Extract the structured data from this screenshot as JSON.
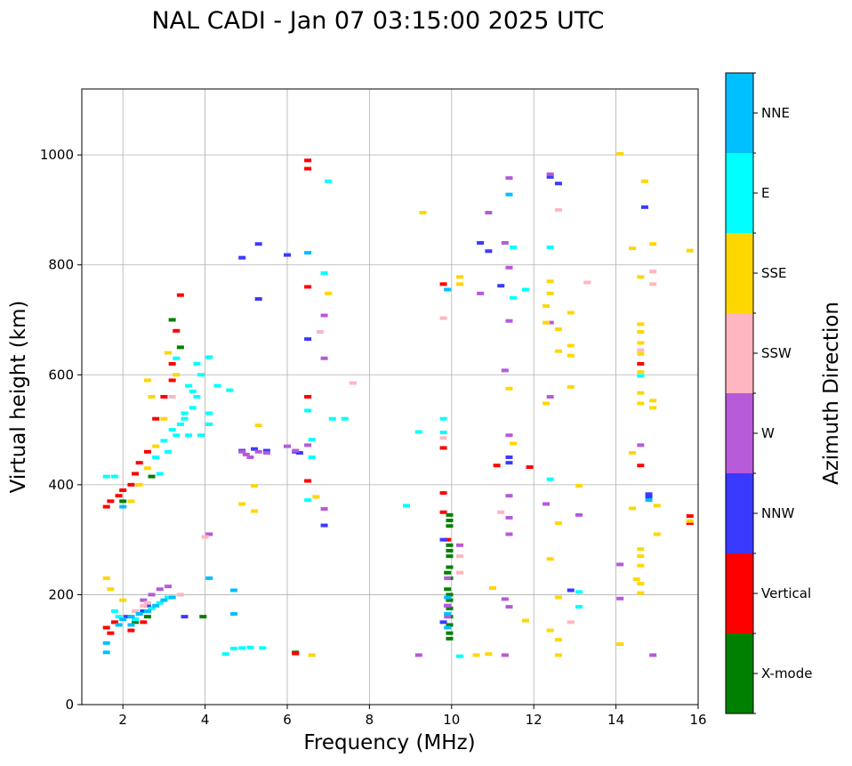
{
  "chart_data": {
    "type": "scatter",
    "title": "NAL CADI - Jan 07 03:15:00 2025 UTC",
    "xlabel": "Frequency (MHz)",
    "ylabel": "Virtual height (km)",
    "xlim": [
      1,
      16
    ],
    "ylim": [
      0,
      1120
    ],
    "xticks": [
      2,
      4,
      6,
      8,
      10,
      12,
      14,
      16
    ],
    "yticks": [
      0,
      200,
      400,
      600,
      800,
      1000
    ],
    "grid": true,
    "colorbar": {
      "label": "Azimuth Direction",
      "placement": "right",
      "categories": [
        {
          "name": "X-mode",
          "color": "#008000"
        },
        {
          "name": "Vertical",
          "color": "#ff0000"
        },
        {
          "name": "NNW",
          "color": "#3a3aff"
        },
        {
          "name": "W",
          "color": "#b65ad9"
        },
        {
          "name": "SSW",
          "color": "#ffb6c1"
        },
        {
          "name": "SSE",
          "color": "#ffd700"
        },
        {
          "name": "E",
          "color": "#00ffff"
        },
        {
          "name": "NNE",
          "color": "#00bfff"
        }
      ]
    },
    "series": [
      {
        "name": "X-mode",
        "points": [
          [
            9.95,
            345
          ],
          [
            9.95,
            335
          ],
          [
            9.95,
            325
          ],
          [
            9.95,
            290
          ],
          [
            9.95,
            280
          ],
          [
            9.95,
            270
          ],
          [
            9.95,
            250
          ],
          [
            9.95,
            230
          ],
          [
            9.95,
            200
          ],
          [
            9.95,
            190
          ],
          [
            9.95,
            175
          ],
          [
            9.95,
            160
          ],
          [
            9.95,
            145
          ],
          [
            9.95,
            130
          ],
          [
            9.95,
            120
          ],
          [
            3.95,
            160
          ],
          [
            2.0,
            370
          ],
          [
            2.7,
            415
          ],
          [
            3.4,
            650
          ],
          [
            3.2,
            700
          ],
          [
            2.3,
            150
          ],
          [
            2.6,
            160
          ],
          [
            9.9,
            210
          ],
          [
            9.9,
            240
          ],
          [
            6.2,
            95
          ]
        ]
      },
      {
        "name": "Vertical",
        "points": [
          [
            1.6,
            140
          ],
          [
            1.7,
            130
          ],
          [
            1.8,
            150
          ],
          [
            1.6,
            360
          ],
          [
            1.7,
            370
          ],
          [
            1.9,
            380
          ],
          [
            2.0,
            390
          ],
          [
            2.2,
            400
          ],
          [
            2.3,
            420
          ],
          [
            2.4,
            440
          ],
          [
            2.6,
            460
          ],
          [
            2.8,
            520
          ],
          [
            3.0,
            560
          ],
          [
            3.2,
            620
          ],
          [
            3.3,
            680
          ],
          [
            3.4,
            745
          ],
          [
            3.2,
            590
          ],
          [
            6.5,
            990
          ],
          [
            6.5,
            975
          ],
          [
            6.5,
            760
          ],
          [
            6.5,
            560
          ],
          [
            6.5,
            407
          ],
          [
            6.2,
            93
          ],
          [
            9.8,
            765
          ],
          [
            9.8,
            467
          ],
          [
            9.8,
            385
          ],
          [
            9.8,
            350
          ],
          [
            9.9,
            300
          ],
          [
            11.1,
            435
          ],
          [
            11.9,
            432
          ],
          [
            14.6,
            620
          ],
          [
            14.6,
            435
          ],
          [
            15.8,
            343
          ],
          [
            15.8,
            330
          ],
          [
            2.5,
            150
          ],
          [
            2.2,
            135
          ]
        ]
      },
      {
        "name": "NNW",
        "points": [
          [
            5.3,
            838
          ],
          [
            6.0,
            818
          ],
          [
            4.9,
            813
          ],
          [
            5.3,
            738
          ],
          [
            6.5,
            665
          ],
          [
            6.9,
            326
          ],
          [
            4.9,
            462
          ],
          [
            5.2,
            465
          ],
          [
            5.5,
            462
          ],
          [
            6.2,
            460
          ],
          [
            6.3,
            458
          ],
          [
            10.7,
            840
          ],
          [
            10.9,
            825
          ],
          [
            11.2,
            762
          ],
          [
            11.4,
            450
          ],
          [
            11.4,
            440
          ],
          [
            9.8,
            300
          ],
          [
            9.8,
            150
          ],
          [
            12.4,
            960
          ],
          [
            12.6,
            948
          ],
          [
            12.9,
            208
          ],
          [
            14.7,
            905
          ],
          [
            14.8,
            383
          ],
          [
            14.8,
            378
          ],
          [
            3.5,
            160
          ],
          [
            2.3,
            155
          ],
          [
            2.5,
            170
          ],
          [
            2.6,
            180
          ],
          [
            2.1,
            160
          ],
          [
            9.9,
            180
          ]
        ]
      },
      {
        "name": "W",
        "points": [
          [
            4.1,
            310
          ],
          [
            4.9,
            460
          ],
          [
            5.0,
            455
          ],
          [
            5.1,
            450
          ],
          [
            5.3,
            460
          ],
          [
            5.5,
            458
          ],
          [
            6.0,
            470
          ],
          [
            6.2,
            462
          ],
          [
            6.5,
            472
          ],
          [
            6.9,
            708
          ],
          [
            6.9,
            630
          ],
          [
            6.9,
            356
          ],
          [
            9.2,
            90
          ],
          [
            9.9,
            160
          ],
          [
            9.9,
            180
          ],
          [
            9.9,
            230
          ],
          [
            10.2,
            290
          ],
          [
            10.7,
            748
          ],
          [
            10.9,
            895
          ],
          [
            11.3,
            840
          ],
          [
            11.4,
            958
          ],
          [
            11.4,
            795
          ],
          [
            11.4,
            698
          ],
          [
            11.3,
            608
          ],
          [
            11.4,
            490
          ],
          [
            11.4,
            380
          ],
          [
            11.4,
            340
          ],
          [
            11.4,
            310
          ],
          [
            11.3,
            192
          ],
          [
            11.4,
            178
          ],
          [
            11.3,
            90
          ],
          [
            12.4,
            965
          ],
          [
            12.4,
            695
          ],
          [
            12.4,
            560
          ],
          [
            12.3,
            365
          ],
          [
            13.1,
            345
          ],
          [
            14.1,
            255
          ],
          [
            14.1,
            193
          ],
          [
            14.6,
            472
          ],
          [
            14.9,
            90
          ],
          [
            2.7,
            200
          ],
          [
            2.9,
            210
          ],
          [
            2.5,
            190
          ],
          [
            3.1,
            215
          ]
        ]
      },
      {
        "name": "SSW",
        "points": [
          [
            4.0,
            305
          ],
          [
            6.8,
            678
          ],
          [
            7.6,
            585
          ],
          [
            9.8,
            703
          ],
          [
            9.8,
            485
          ],
          [
            10.2,
            270
          ],
          [
            10.2,
            240
          ],
          [
            11.2,
            350
          ],
          [
            12.6,
            900
          ],
          [
            13.3,
            768
          ],
          [
            14.6,
            645
          ],
          [
            14.9,
            788
          ],
          [
            14.9,
            765
          ],
          [
            12.9,
            150
          ],
          [
            2.5,
            180
          ],
          [
            2.6,
            185
          ],
          [
            2.3,
            170
          ],
          [
            3.4,
            200
          ],
          [
            3.2,
            560
          ]
        ]
      },
      {
        "name": "SSE",
        "points": [
          [
            6.6,
            90
          ],
          [
            4.9,
            365
          ],
          [
            5.2,
            352
          ],
          [
            5.2,
            398
          ],
          [
            5.3,
            508
          ],
          [
            6.7,
            378
          ],
          [
            7.0,
            748
          ],
          [
            9.3,
            895
          ],
          [
            10.2,
            778
          ],
          [
            10.2,
            765
          ],
          [
            11.4,
            575
          ],
          [
            11.5,
            475
          ],
          [
            11.8,
            153
          ],
          [
            12.4,
            770
          ],
          [
            12.4,
            748
          ],
          [
            12.3,
            725
          ],
          [
            12.3,
            695
          ],
          [
            12.3,
            548
          ],
          [
            12.4,
            265
          ],
          [
            12.4,
            135
          ],
          [
            12.6,
            195
          ],
          [
            12.6,
            118
          ],
          [
            12.6,
            90
          ],
          [
            12.6,
            683
          ],
          [
            12.6,
            643
          ],
          [
            12.9,
            713
          ],
          [
            12.9,
            653
          ],
          [
            12.9,
            635
          ],
          [
            12.9,
            578
          ],
          [
            13.1,
            398
          ],
          [
            14.1,
            1002
          ],
          [
            14.1,
            110
          ],
          [
            14.4,
            830
          ],
          [
            14.4,
            458
          ],
          [
            14.4,
            357
          ],
          [
            14.5,
            228
          ],
          [
            14.6,
            778
          ],
          [
            14.6,
            692
          ],
          [
            14.6,
            678
          ],
          [
            14.6,
            658
          ],
          [
            14.6,
            638
          ],
          [
            14.6,
            605
          ],
          [
            14.6,
            567
          ],
          [
            14.6,
            548
          ],
          [
            14.6,
            283
          ],
          [
            14.6,
            270
          ],
          [
            14.6,
            253
          ],
          [
            14.6,
            220
          ],
          [
            14.6,
            203
          ],
          [
            14.7,
            952
          ],
          [
            14.9,
            838
          ],
          [
            14.9,
            553
          ],
          [
            14.9,
            540
          ],
          [
            15.0,
            362
          ],
          [
            15.0,
            310
          ],
          [
            10.6,
            90
          ],
          [
            10.9,
            92
          ],
          [
            11.0,
            212
          ],
          [
            12.6,
            330
          ],
          [
            15.8,
            826
          ],
          [
            15.8,
            334
          ],
          [
            2.2,
            370
          ],
          [
            2.4,
            400
          ],
          [
            2.6,
            430
          ],
          [
            2.8,
            470
          ],
          [
            3.0,
            520
          ],
          [
            2.7,
            560
          ],
          [
            2.6,
            590
          ],
          [
            3.3,
            600
          ],
          [
            3.1,
            640
          ],
          [
            1.6,
            230
          ],
          [
            1.7,
            210
          ],
          [
            2.0,
            190
          ]
        ]
      },
      {
        "name": "E",
        "points": [
          [
            4.5,
            92
          ],
          [
            4.7,
            102
          ],
          [
            4.9,
            103
          ],
          [
            5.1,
            104
          ],
          [
            5.4,
            103
          ],
          [
            6.6,
            482
          ],
          [
            6.6,
            450
          ],
          [
            6.5,
            372
          ],
          [
            6.5,
            535
          ],
          [
            7.1,
            520
          ],
          [
            7.4,
            520
          ],
          [
            6.9,
            785
          ],
          [
            7.0,
            952
          ],
          [
            10.2,
            88
          ],
          [
            8.9,
            362
          ],
          [
            9.2,
            496
          ],
          [
            9.8,
            520
          ],
          [
            9.8,
            495
          ],
          [
            11.5,
            832
          ],
          [
            11.5,
            740
          ],
          [
            11.8,
            755
          ],
          [
            12.4,
            832
          ],
          [
            12.4,
            410
          ],
          [
            13.1,
            205
          ],
          [
            13.1,
            178
          ],
          [
            14.6,
            598
          ],
          [
            2.8,
            450
          ],
          [
            3.0,
            480
          ],
          [
            3.2,
            500
          ],
          [
            3.5,
            520
          ],
          [
            3.7,
            540
          ],
          [
            3.8,
            560
          ],
          [
            3.6,
            580
          ],
          [
            3.9,
            600
          ],
          [
            2.9,
            420
          ],
          [
            3.1,
            460
          ],
          [
            3.4,
            510
          ],
          [
            3.3,
            490
          ],
          [
            3.5,
            530
          ],
          [
            3.7,
            570
          ],
          [
            4.1,
            510
          ],
          [
            4.1,
            530
          ],
          [
            4.3,
            580
          ],
          [
            4.6,
            572
          ],
          [
            3.9,
            490
          ],
          [
            3.6,
            490
          ],
          [
            3.8,
            620
          ],
          [
            4.1,
            632
          ],
          [
            3.3,
            630
          ],
          [
            1.8,
            170
          ],
          [
            1.9,
            160
          ],
          [
            2.3,
            155
          ],
          [
            2.4,
            165
          ],
          [
            2.7,
            175
          ],
          [
            2.9,
            185
          ],
          [
            3.1,
            195
          ],
          [
            1.6,
            415
          ],
          [
            1.8,
            415
          ]
        ]
      },
      {
        "name": "NNE",
        "points": [
          [
            4.7,
            165
          ],
          [
            4.7,
            208
          ],
          [
            4.1,
            230
          ],
          [
            6.5,
            822
          ],
          [
            11.4,
            928
          ],
          [
            9.9,
            755
          ],
          [
            9.9,
            140
          ],
          [
            9.9,
            165
          ],
          [
            9.9,
            195
          ],
          [
            14.8,
            372
          ],
          [
            2.0,
            155
          ],
          [
            2.2,
            160
          ],
          [
            2.4,
            165
          ],
          [
            2.6,
            170
          ],
          [
            2.8,
            180
          ],
          [
            3.0,
            190
          ],
          [
            2.2,
            145
          ],
          [
            1.9,
            145
          ],
          [
            3.2,
            195
          ],
          [
            1.6,
            112
          ],
          [
            1.6,
            95
          ],
          [
            2.0,
            360
          ]
        ]
      }
    ]
  }
}
